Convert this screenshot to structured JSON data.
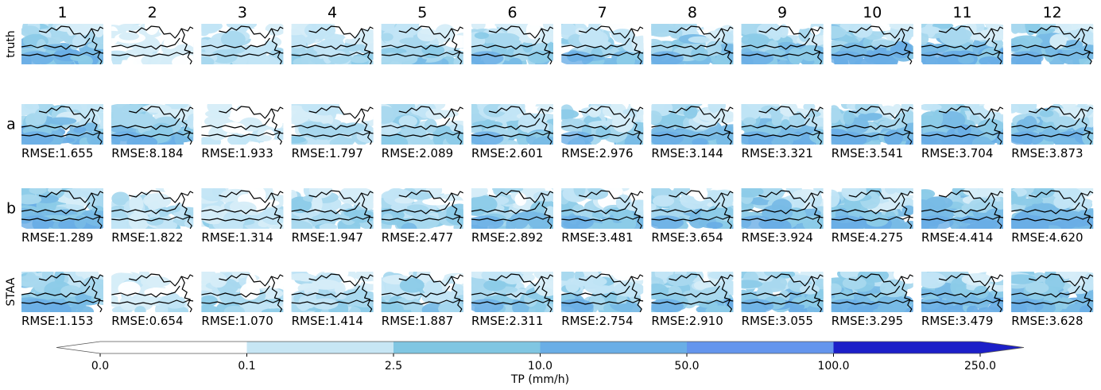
{
  "chart_data": {
    "type": "heatmap",
    "columns": [
      "1",
      "2",
      "3",
      "4",
      "5",
      "6",
      "7",
      "8",
      "9",
      "10",
      "11",
      "12"
    ],
    "rows": [
      {
        "label": "truth",
        "rmse_prefix": "",
        "rmse": []
      },
      {
        "label": "a",
        "rmse_prefix": "RMSE:",
        "rmse": [
          "1.655",
          "8.184",
          "1.933",
          "1.797",
          "2.089",
          "2.601",
          "2.976",
          "3.144",
          "3.321",
          "3.541",
          "3.704",
          "3.873"
        ]
      },
      {
        "label": "b",
        "rmse_prefix": "RMSE:",
        "rmse": [
          "1.289",
          "1.822",
          "1.314",
          "1.947",
          "2.477",
          "2.892",
          "3.481",
          "3.654",
          "3.924",
          "4.275",
          "4.414",
          "4.620"
        ]
      },
      {
        "label": "STAA",
        "rmse_prefix": "RMSE:",
        "rmse": [
          "1.153",
          "0.654",
          "1.070",
          "1.414",
          "1.887",
          "2.311",
          "2.754",
          "2.910",
          "3.055",
          "3.295",
          "3.479",
          "3.628"
        ]
      }
    ],
    "intensity_levels": [
      [
        0.8,
        0.25,
        0.45,
        0.5,
        0.6,
        0.65,
        0.65,
        0.75,
        0.8,
        0.85,
        0.85,
        0.85
      ],
      [
        0.85,
        0.8,
        0.2,
        0.45,
        0.6,
        0.65,
        0.65,
        0.75,
        0.8,
        0.82,
        0.85,
        0.85
      ],
      [
        0.85,
        0.45,
        0.45,
        0.55,
        0.6,
        0.65,
        0.7,
        0.75,
        0.8,
        0.82,
        0.85,
        0.85
      ],
      [
        0.8,
        0.3,
        0.45,
        0.5,
        0.6,
        0.65,
        0.7,
        0.75,
        0.8,
        0.82,
        0.85,
        0.85
      ]
    ],
    "colorbar": {
      "label": "TP (mm/h)",
      "ticks": [
        "0.0",
        "0.1",
        "2.5",
        "10.0",
        "50.0",
        "100.0",
        "250.0"
      ],
      "colors": [
        "#ffffff",
        "#c7e6f4",
        "#80c6e2",
        "#6aaee6",
        "#6495ed",
        "#1c1fc8"
      ],
      "extend": "both"
    }
  }
}
